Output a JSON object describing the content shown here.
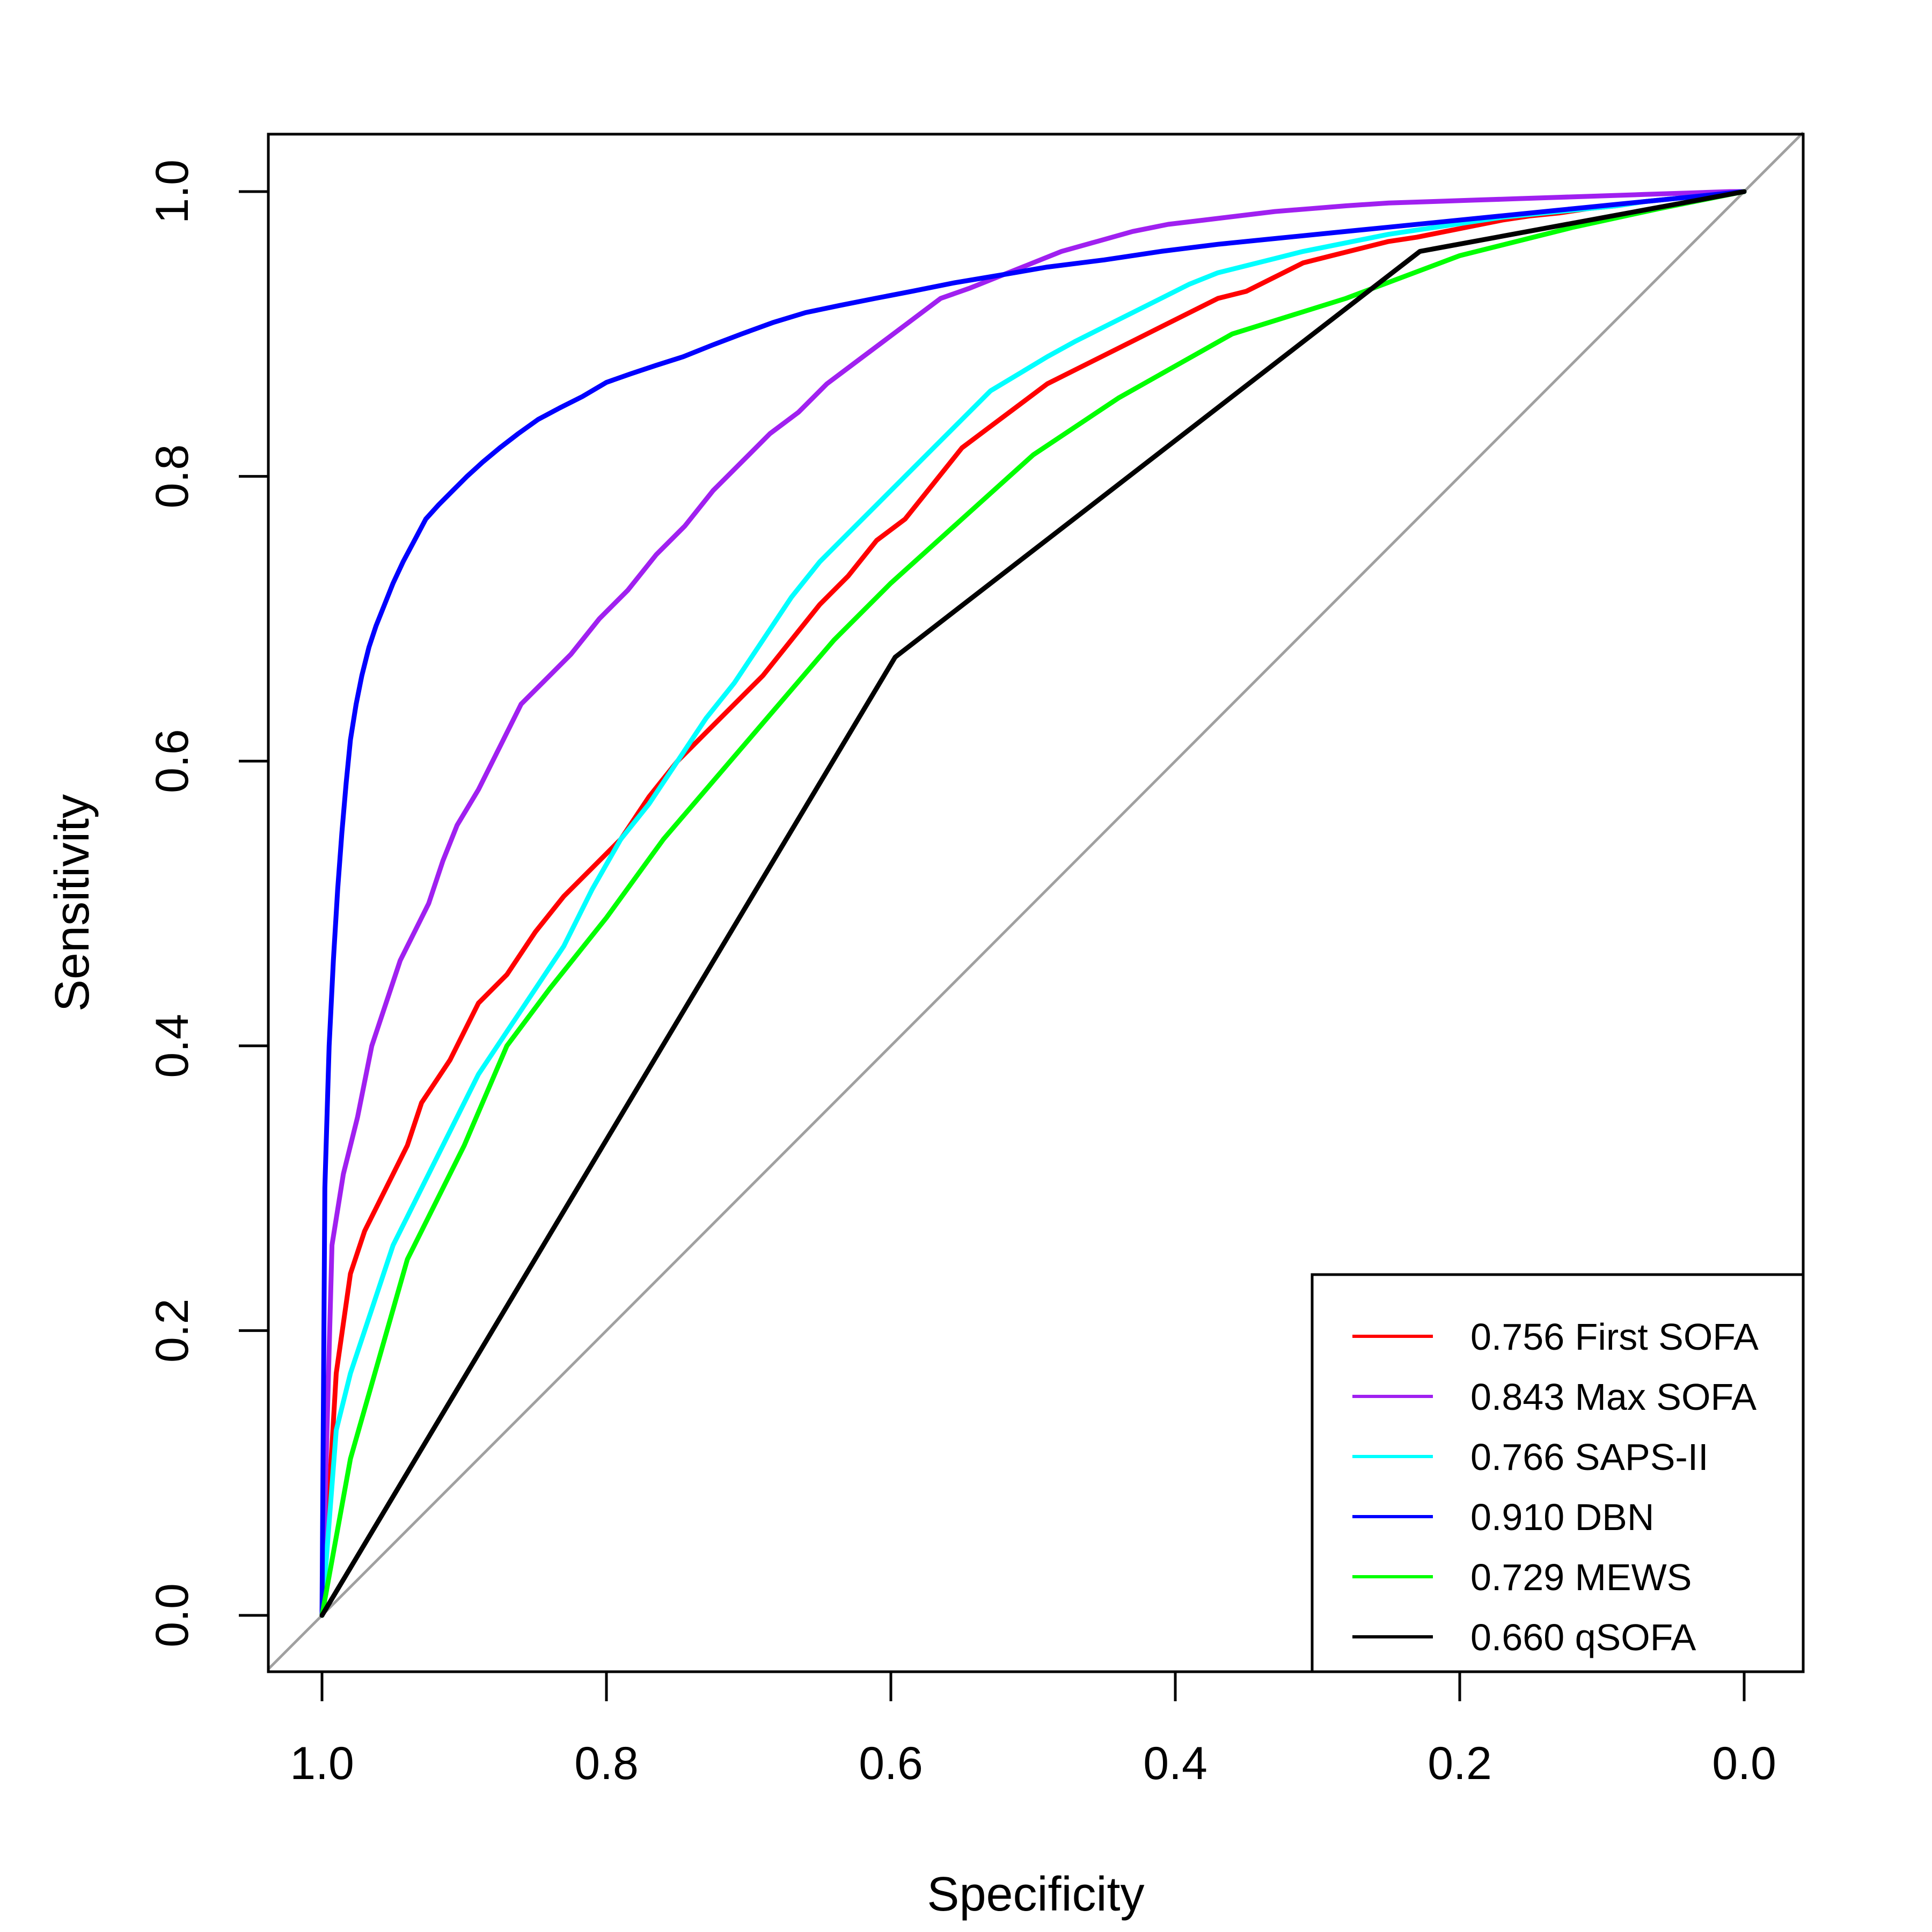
{
  "chart_data": {
    "type": "line",
    "title": "",
    "xlabel": "Specificity",
    "ylabel": "Sensitivity",
    "xlim": [
      1.0,
      0.0
    ],
    "ylim": [
      0.0,
      1.0
    ],
    "x_reversed": true,
    "grid": false,
    "legend_position": "bottom-right",
    "x_ticks": [
      1.0,
      0.8,
      0.6,
      0.4,
      0.2,
      0.0
    ],
    "x_tick_labels": [
      "1.0",
      "0.8",
      "0.6",
      "0.4",
      "0.2",
      "0.0"
    ],
    "y_ticks": [
      0.0,
      0.2,
      0.4,
      0.6,
      0.8,
      1.0
    ],
    "y_tick_labels": [
      "0.0",
      "0.2",
      "0.4",
      "0.6",
      "0.8",
      "1.0"
    ],
    "reference_line": {
      "from": [
        1.0,
        0.0
      ],
      "to": [
        0.0,
        1.0
      ],
      "color": "#a0a0a0"
    },
    "series": [
      {
        "name": "0.756 First SOFA",
        "color": "#ff0000",
        "x": [
          1.0,
          0.99,
          0.98,
          0.97,
          0.96,
          0.95,
          0.94,
          0.93,
          0.91,
          0.89,
          0.87,
          0.85,
          0.83,
          0.81,
          0.79,
          0.77,
          0.75,
          0.73,
          0.71,
          0.69,
          0.67,
          0.65,
          0.63,
          0.61,
          0.59,
          0.57,
          0.55,
          0.53,
          0.51,
          0.49,
          0.47,
          0.45,
          0.43,
          0.41,
          0.39,
          0.37,
          0.35,
          0.33,
          0.31,
          0.29,
          0.27,
          0.25,
          0.23,
          0.21,
          0.19,
          0.17,
          0.15,
          0.13,
          0.11,
          0.09,
          0.07,
          0.05,
          0.03,
          0.01,
          0.0
        ],
        "y": [
          0.0,
          0.17,
          0.24,
          0.27,
          0.29,
          0.31,
          0.33,
          0.36,
          0.39,
          0.43,
          0.45,
          0.48,
          0.505,
          0.525,
          0.545,
          0.575,
          0.6,
          0.62,
          0.64,
          0.66,
          0.685,
          0.71,
          0.73,
          0.755,
          0.77,
          0.795,
          0.82,
          0.835,
          0.85,
          0.865,
          0.875,
          0.885,
          0.895,
          0.905,
          0.915,
          0.925,
          0.93,
          0.94,
          0.95,
          0.955,
          0.96,
          0.965,
          0.968,
          0.972,
          0.976,
          0.98,
          0.983,
          0.985,
          0.988,
          0.99,
          0.993,
          0.995,
          0.997,
          0.999,
          1.0
        ]
      },
      {
        "name": "0.843 Max SOFA",
        "color": "#a020f0",
        "x": [
          1.0,
          0.993,
          0.985,
          0.975,
          0.965,
          0.955,
          0.945,
          0.935,
          0.925,
          0.915,
          0.905,
          0.89,
          0.875,
          0.86,
          0.845,
          0.825,
          0.805,
          0.785,
          0.765,
          0.745,
          0.725,
          0.705,
          0.685,
          0.665,
          0.645,
          0.625,
          0.605,
          0.585,
          0.565,
          0.545,
          0.525,
          0.505,
          0.48,
          0.455,
          0.43,
          0.405,
          0.38,
          0.355,
          0.33,
          0.305,
          0.28,
          0.25,
          0.22,
          0.19,
          0.16,
          0.13,
          0.1,
          0.07,
          0.04,
          0.01,
          0.0
        ],
        "y": [
          0.0,
          0.26,
          0.31,
          0.35,
          0.4,
          0.43,
          0.46,
          0.48,
          0.5,
          0.53,
          0.555,
          0.58,
          0.61,
          0.64,
          0.655,
          0.675,
          0.7,
          0.72,
          0.745,
          0.765,
          0.79,
          0.81,
          0.83,
          0.845,
          0.865,
          0.88,
          0.895,
          0.91,
          0.925,
          0.932,
          0.94,
          0.948,
          0.958,
          0.965,
          0.972,
          0.977,
          0.98,
          0.983,
          0.986,
          0.988,
          0.99,
          0.992,
          0.993,
          0.994,
          0.995,
          0.996,
          0.997,
          0.998,
          0.999,
          1.0,
          1.0
        ]
      },
      {
        "name": "0.766 SAPS-II",
        "color": "#00ffff",
        "x": [
          1.0,
          0.99,
          0.98,
          0.97,
          0.96,
          0.95,
          0.94,
          0.93,
          0.91,
          0.89,
          0.87,
          0.85,
          0.83,
          0.81,
          0.79,
          0.77,
          0.75,
          0.73,
          0.71,
          0.69,
          0.67,
          0.65,
          0.63,
          0.61,
          0.59,
          0.57,
          0.55,
          0.53,
          0.51,
          0.49,
          0.47,
          0.45,
          0.43,
          0.41,
          0.39,
          0.37,
          0.35,
          0.33,
          0.31,
          0.29,
          0.27,
          0.25,
          0.23,
          0.21,
          0.19,
          0.17,
          0.15,
          0.13,
          0.11,
          0.09,
          0.07,
          0.05,
          0.03,
          0.01,
          0.0
        ],
        "y": [
          0.0,
          0.13,
          0.17,
          0.2,
          0.23,
          0.26,
          0.28,
          0.3,
          0.34,
          0.38,
          0.41,
          0.44,
          0.47,
          0.51,
          0.545,
          0.57,
          0.6,
          0.63,
          0.655,
          0.685,
          0.715,
          0.74,
          0.76,
          0.78,
          0.8,
          0.82,
          0.84,
          0.86,
          0.872,
          0.884,
          0.895,
          0.905,
          0.915,
          0.925,
          0.935,
          0.943,
          0.948,
          0.953,
          0.958,
          0.962,
          0.966,
          0.97,
          0.973,
          0.976,
          0.979,
          0.982,
          0.984,
          0.986,
          0.988,
          0.99,
          0.993,
          0.995,
          0.997,
          0.999,
          1.0
        ]
      },
      {
        "name": "0.910 DBN",
        "color": "#0000ff",
        "x": [
          1.0,
          0.998,
          0.995,
          0.992,
          0.989,
          0.986,
          0.983,
          0.98,
          0.976,
          0.972,
          0.967,
          0.962,
          0.956,
          0.95,
          0.943,
          0.935,
          0.927,
          0.918,
          0.908,
          0.898,
          0.887,
          0.875,
          0.862,
          0.848,
          0.833,
          0.817,
          0.8,
          0.783,
          0.765,
          0.746,
          0.726,
          0.705,
          0.683,
          0.66,
          0.636,
          0.611,
          0.585,
          0.555,
          0.525,
          0.49,
          0.45,
          0.41,
          0.37,
          0.33,
          0.29,
          0.25,
          0.21,
          0.17,
          0.13,
          0.09,
          0.05,
          0.02,
          0.0
        ],
        "y": [
          0.0,
          0.3,
          0.4,
          0.46,
          0.51,
          0.55,
          0.585,
          0.615,
          0.64,
          0.66,
          0.68,
          0.695,
          0.71,
          0.725,
          0.74,
          0.755,
          0.77,
          0.78,
          0.79,
          0.8,
          0.81,
          0.82,
          0.83,
          0.84,
          0.848,
          0.856,
          0.866,
          0.872,
          0.878,
          0.884,
          0.892,
          0.9,
          0.908,
          0.915,
          0.92,
          0.925,
          0.93,
          0.936,
          0.941,
          0.947,
          0.952,
          0.958,
          0.963,
          0.967,
          0.971,
          0.975,
          0.979,
          0.983,
          0.987,
          0.991,
          0.995,
          0.998,
          1.0
        ]
      },
      {
        "name": "0.729 MEWS",
        "color": "#00ff00",
        "x": [
          1.0,
          0.98,
          0.96,
          0.94,
          0.93,
          0.9,
          0.87,
          0.84,
          0.8,
          0.76,
          0.7,
          0.64,
          0.6,
          0.55,
          0.5,
          0.44,
          0.36,
          0.28,
          0.2,
          0.12,
          0.06,
          0.0
        ],
        "y": [
          0.0,
          0.11,
          0.18,
          0.25,
          0.27,
          0.33,
          0.4,
          0.44,
          0.49,
          0.545,
          0.615,
          0.685,
          0.725,
          0.77,
          0.815,
          0.855,
          0.9,
          0.925,
          0.955,
          0.975,
          0.988,
          1.0
        ]
      },
      {
        "name": "0.660 qSOFA",
        "color": "#000000",
        "x": [
          1.0,
          0.597,
          0.228,
          0.0
        ],
        "y": [
          0.0,
          0.673,
          0.958,
          1.0
        ]
      }
    ]
  }
}
